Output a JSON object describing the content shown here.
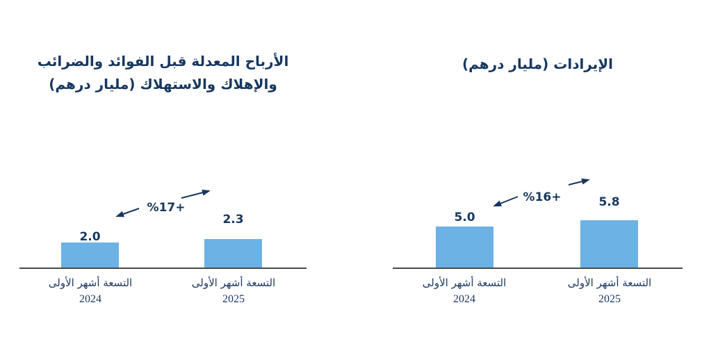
{
  "page": {
    "background": "#ffffff",
    "description_labels": {
      "unit_note": "(مليار درهم)"
    }
  },
  "colors": {
    "navy_text": "#17375E",
    "bar_blue": "#6CB2E4",
    "axis_gray": "#4a4a4a"
  },
  "chart_data": [
    {
      "type": "bar",
      "title": "الأرباح المعدلة قبل الفوائد والضرائب والإهلاك والاستهلاك (مليار درهم)",
      "title_lines": [
        "الأرباح المعدلة قبل الفوائد والضرائب",
        "والإهلاك والاستهلاك (مليار درهم)"
      ],
      "categories": [
        "التسعة أشهر الأولى",
        "التسعة أشهر الأولى"
      ],
      "category_years": [
        "2024",
        "2025"
      ],
      "values": [
        2.0,
        2.3
      ],
      "data_labels": [
        "2.0",
        "2.3"
      ],
      "growth_label": "%17+",
      "bar_color": "#6CB2E4",
      "xlabel": "",
      "ylabel": "",
      "y_axis_visible": false,
      "grid": false,
      "legend": "none",
      "baseline_visible": true
    },
    {
      "type": "bar",
      "title": "الإيرادات (مليار درهم)",
      "title_lines": [
        "الإيرادات (مليار درهم)"
      ],
      "categories": [
        "التسعة أشهر الأولى",
        "التسعة أشهر الأولى"
      ],
      "category_years": [
        "2024",
        "2025"
      ],
      "values": [
        5.0,
        5.8
      ],
      "data_labels": [
        "5.0",
        "5.8"
      ],
      "growth_label": "%16+",
      "bar_color": "#6CB2E4",
      "xlabel": "",
      "ylabel": "",
      "y_axis_visible": false,
      "grid": false,
      "legend": "none",
      "baseline_visible": true
    }
  ]
}
